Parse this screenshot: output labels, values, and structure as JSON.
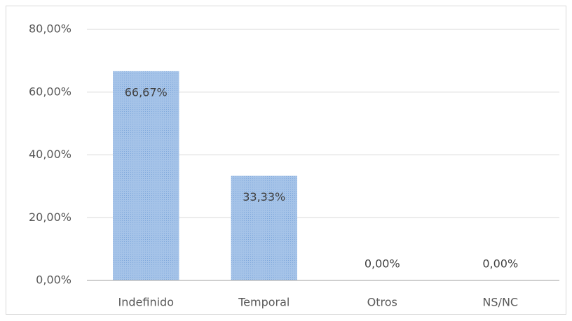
{
  "chart_data": {
    "type": "bar",
    "categories": [
      "Indefinido",
      "Temporal",
      "Otros",
      "NS/NC"
    ],
    "values": [
      66.67,
      33.33,
      0,
      0
    ],
    "value_labels": [
      "66,67%",
      "33,33%",
      "0,00%",
      "0,00%"
    ],
    "color": "#a5c3e8",
    "ylim": [
      0,
      80
    ],
    "yticks": [
      {
        "value": 0,
        "label": "0,00%"
      },
      {
        "value": 20,
        "label": "20,00%"
      },
      {
        "value": 40,
        "label": "40,00%"
      },
      {
        "value": 60,
        "label": "60,00%"
      },
      {
        "value": 80,
        "label": "80,00%"
      }
    ],
    "grid": true
  }
}
